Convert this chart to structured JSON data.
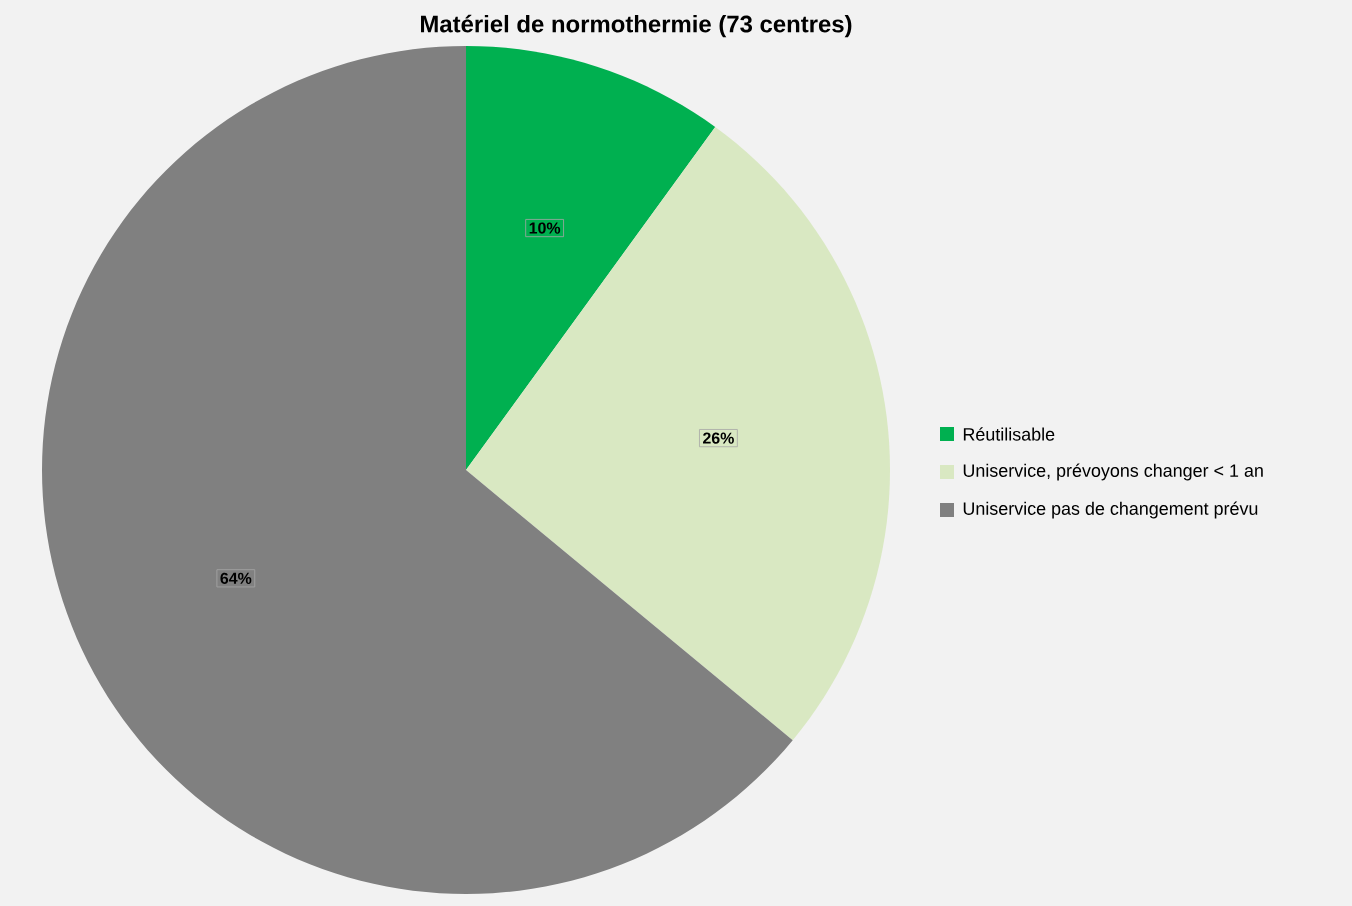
{
  "chart_data": {
    "type": "pie",
    "title": "Matériel de normothermie (73 centres)",
    "categories": [
      "Réutilisable",
      "Uniservice, prévoyons changer < 1 an",
      "Uniservice pas de changement prévu"
    ],
    "values": [
      10,
      26,
      64
    ],
    "colors": [
      "#00b050",
      "#d9e8c2",
      "#808080"
    ],
    "value_labels": [
      "10%",
      "26%",
      "64%"
    ],
    "legend": "right"
  }
}
